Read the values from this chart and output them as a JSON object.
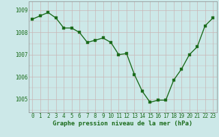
{
  "x": [
    0,
    1,
    2,
    3,
    4,
    5,
    6,
    7,
    8,
    9,
    10,
    11,
    12,
    13,
    14,
    15,
    16,
    17,
    18,
    19,
    20,
    21,
    22,
    23
  ],
  "y": [
    1008.6,
    1008.75,
    1008.9,
    1008.65,
    1008.2,
    1008.2,
    1008.0,
    1007.55,
    1007.65,
    1007.75,
    1007.55,
    1007.0,
    1007.05,
    1006.1,
    1005.35,
    1004.85,
    1004.95,
    1004.95,
    1005.85,
    1006.35,
    1007.0,
    1007.35,
    1008.3,
    1008.65
  ],
  "line_color": "#1a6b1a",
  "marker_color": "#1a6b1a",
  "bg_color": "#cce8e8",
  "grid_color_major": "#c8b4b4",
  "xlabel": "Graphe pression niveau de la mer (hPa)",
  "ylim": [
    1004.4,
    1009.4
  ],
  "yticks": [
    1005,
    1006,
    1007,
    1008,
    1009
  ],
  "xticks": [
    0,
    1,
    2,
    3,
    4,
    5,
    6,
    7,
    8,
    9,
    10,
    11,
    12,
    13,
    14,
    15,
    16,
    17,
    18,
    19,
    20,
    21,
    22,
    23
  ],
  "marker_size": 2.5,
  "line_width": 1.0,
  "xlabel_fontsize": 6.5,
  "tick_fontsize": 5.5,
  "xlabel_color": "#1a6b1a",
  "tick_color": "#1a6b1a",
  "spine_color": "#888888"
}
